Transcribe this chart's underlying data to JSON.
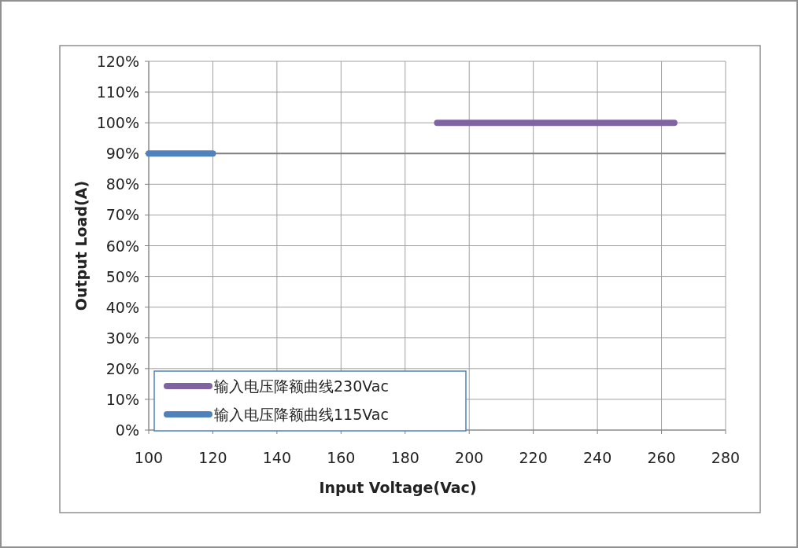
{
  "chart_data": {
    "type": "line",
    "xlabel": "Input  Voltage(Vac)",
    "ylabel": "Output Load(A)",
    "series": [
      {
        "name": "输入电压降额曲线230Vac",
        "color": "#8064a2",
        "x": [
          190,
          264
        ],
        "values": [
          100,
          100
        ]
      },
      {
        "name": "输入电压降额曲线115Vac",
        "color": "#4f81bd",
        "x": [
          100,
          120
        ],
        "values": [
          90,
          90
        ]
      }
    ],
    "xlim": [
      100,
      280
    ],
    "xticks": [
      100,
      120,
      140,
      160,
      180,
      200,
      220,
      240,
      260,
      280
    ],
    "ylim": [
      0,
      120
    ],
    "yticks": [
      {
        "value": 0,
        "label": "0%"
      },
      {
        "value": 10,
        "label": "10%"
      },
      {
        "value": 20,
        "label": "20%"
      },
      {
        "value": 30,
        "label": "30%"
      },
      {
        "value": 40,
        "label": "40%"
      },
      {
        "value": 50,
        "label": "50%"
      },
      {
        "value": 60,
        "label": "60%"
      },
      {
        "value": 70,
        "label": "70%"
      },
      {
        "value": 80,
        "label": "80%"
      },
      {
        "value": 90,
        "label": "90%"
      },
      {
        "value": 100,
        "label": "100%"
      },
      {
        "value": 110,
        "label": "110%"
      },
      {
        "value": 120,
        "label": "120%"
      }
    ],
    "ref_lines": [
      {
        "axis": "y",
        "value": 90,
        "color": "#808080"
      }
    ],
    "grid": true,
    "legend": "bottom left",
    "marker": "none",
    "line_style": "solid"
  }
}
